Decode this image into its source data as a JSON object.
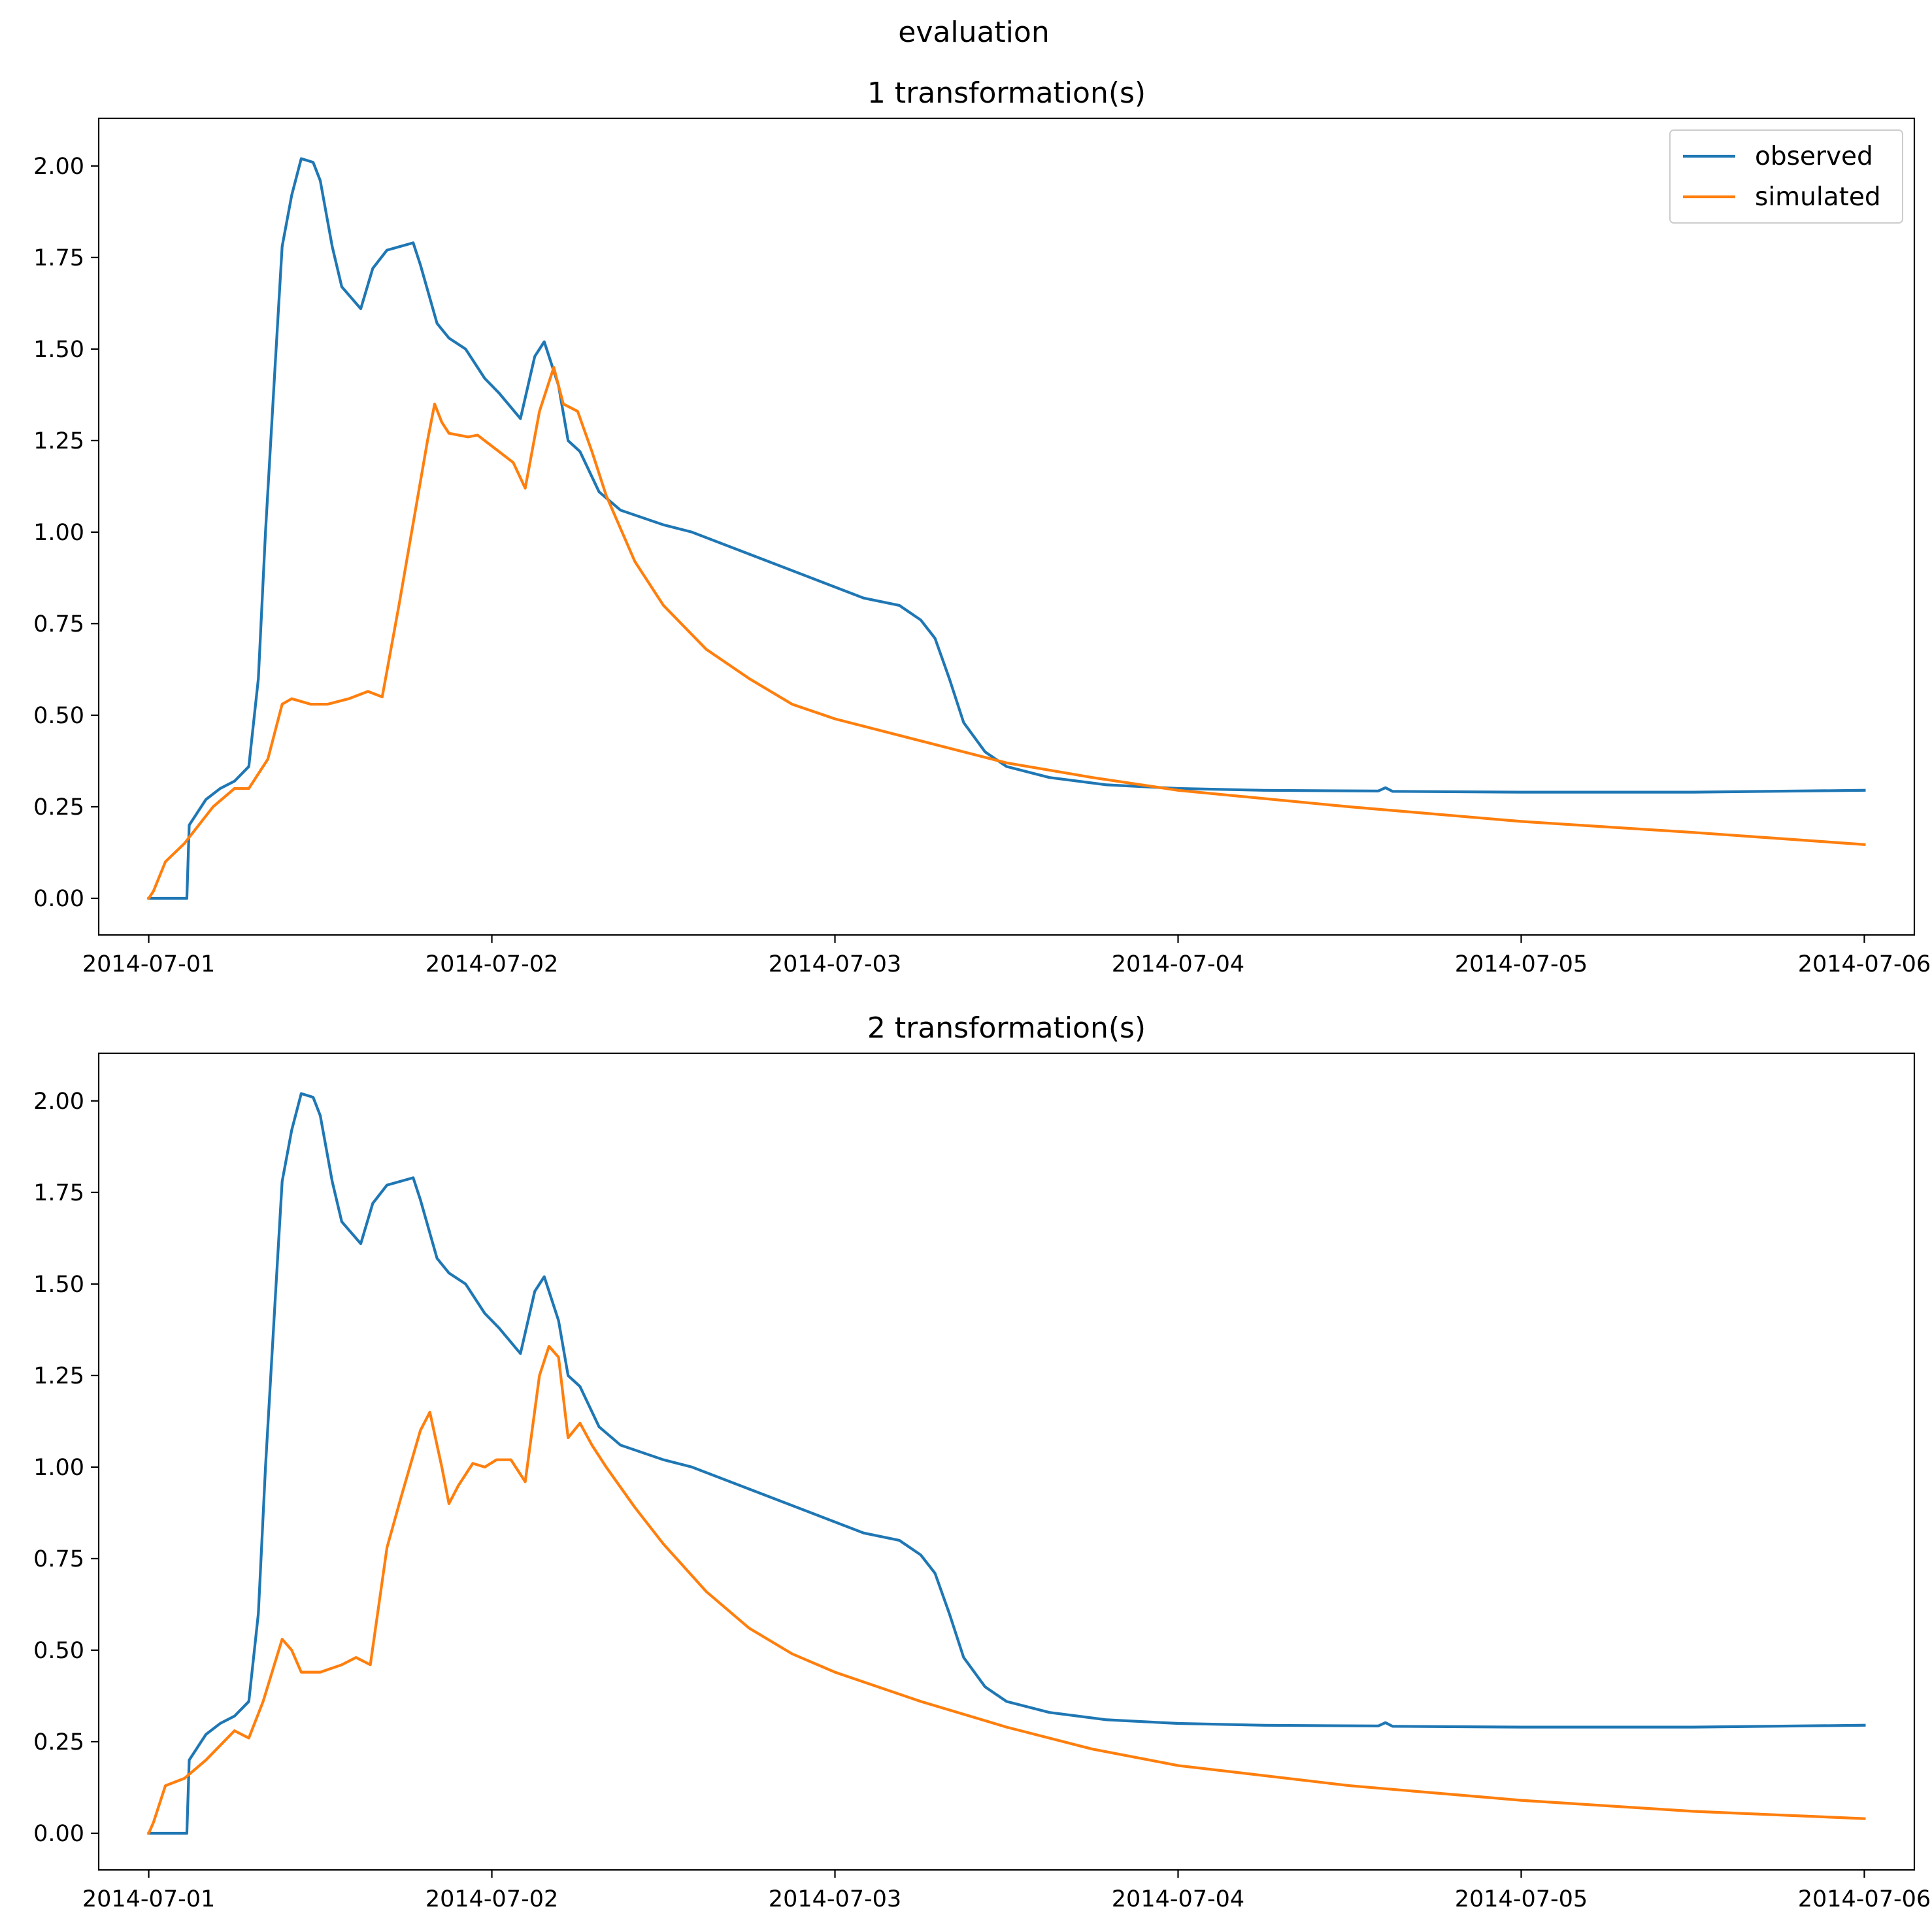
{
  "suptitle": "evaluation",
  "chart_data": [
    {
      "type": "line",
      "title": "1 transformation(s)",
      "xlabel": "",
      "ylabel": "",
      "xlim": [
        "2014-06-30T20:30",
        "2014-07-06T03:30"
      ],
      "ylim": [
        -0.1,
        2.13
      ],
      "xticks": [
        "2014-07-01",
        "2014-07-02",
        "2014-07-03",
        "2014-07-04",
        "2014-07-05",
        "2014-07-06"
      ],
      "yticks": [
        "0.00",
        "0.25",
        "0.50",
        "0.75",
        "1.00",
        "1.25",
        "1.50",
        "1.75",
        "2.00"
      ],
      "grid": false,
      "legend": "upper right",
      "series": [
        {
          "name": "observed",
          "color": "#1f77b4",
          "points": [
            [
              "2014-07-01T00:00",
              0.0
            ],
            [
              "2014-07-01T02:40",
              0.0
            ],
            [
              "2014-07-01T02:50",
              0.2
            ],
            [
              "2014-07-01T03:30",
              0.24
            ],
            [
              "2014-07-01T04:00",
              0.27
            ],
            [
              "2014-07-01T05:00",
              0.3
            ],
            [
              "2014-07-01T06:00",
              0.32
            ],
            [
              "2014-07-01T07:00",
              0.36
            ],
            [
              "2014-07-01T07:40",
              0.6
            ],
            [
              "2014-07-01T08:10",
              1.0
            ],
            [
              "2014-07-01T08:50",
              1.45
            ],
            [
              "2014-07-01T09:20",
              1.78
            ],
            [
              "2014-07-01T10:00",
              1.92
            ],
            [
              "2014-07-01T10:40",
              2.02
            ],
            [
              "2014-07-01T11:30",
              2.01
            ],
            [
              "2014-07-01T12:00",
              1.96
            ],
            [
              "2014-07-01T12:50",
              1.78
            ],
            [
              "2014-07-01T13:30",
              1.67
            ],
            [
              "2014-07-01T14:50",
              1.61
            ],
            [
              "2014-07-01T15:40",
              1.72
            ],
            [
              "2014-07-01T16:40",
              1.77
            ],
            [
              "2014-07-01T18:30",
              1.79
            ],
            [
              "2014-07-01T19:00",
              1.73
            ],
            [
              "2014-07-01T20:10",
              1.57
            ],
            [
              "2014-07-01T21:00",
              1.53
            ],
            [
              "2014-07-01T22:10",
              1.5
            ],
            [
              "2014-07-01T23:30",
              1.42
            ],
            [
              "2014-07-02T00:30",
              1.38
            ],
            [
              "2014-07-02T02:00",
              1.31
            ],
            [
              "2014-07-02T03:00",
              1.48
            ],
            [
              "2014-07-02T03:40",
              1.52
            ],
            [
              "2014-07-02T04:40",
              1.4
            ],
            [
              "2014-07-02T05:20",
              1.25
            ],
            [
              "2014-07-02T06:10",
              1.22
            ],
            [
              "2014-07-02T07:30",
              1.11
            ],
            [
              "2014-07-02T09:00",
              1.06
            ],
            [
              "2014-07-02T12:00",
              1.02
            ],
            [
              "2014-07-02T14:00",
              1.0
            ],
            [
              "2014-07-02T18:00",
              0.94
            ],
            [
              "2014-07-02T22:00",
              0.88
            ],
            [
              "2014-07-03T02:00",
              0.82
            ],
            [
              "2014-07-03T04:30",
              0.8
            ],
            [
              "2014-07-03T06:00",
              0.76
            ],
            [
              "2014-07-03T07:00",
              0.71
            ],
            [
              "2014-07-03T08:00",
              0.6
            ],
            [
              "2014-07-03T09:00",
              0.48
            ],
            [
              "2014-07-03T10:30",
              0.4
            ],
            [
              "2014-07-03T12:00",
              0.36
            ],
            [
              "2014-07-03T15:00",
              0.33
            ],
            [
              "2014-07-03T19:00",
              0.31
            ],
            [
              "2014-07-04T00:00",
              0.3
            ],
            [
              "2014-07-04T06:00",
              0.295
            ],
            [
              "2014-07-04T14:00",
              0.293
            ],
            [
              "2014-07-04T14:30",
              0.302
            ],
            [
              "2014-07-04T15:00",
              0.292
            ],
            [
              "2014-07-05T00:00",
              0.29
            ],
            [
              "2014-07-05T12:00",
              0.29
            ],
            [
              "2014-07-06T00:00",
              0.295
            ]
          ]
        },
        {
          "name": "simulated",
          "color": "#ff7f0e",
          "points": [
            [
              "2014-07-01T00:00",
              0.0
            ],
            [
              "2014-07-01T00:20",
              0.02
            ],
            [
              "2014-07-01T01:10",
              0.1
            ],
            [
              "2014-07-01T02:30",
              0.15
            ],
            [
              "2014-07-01T04:30",
              0.25
            ],
            [
              "2014-07-01T06:00",
              0.3
            ],
            [
              "2014-07-01T07:00",
              0.3
            ],
            [
              "2014-07-01T08:20",
              0.38
            ],
            [
              "2014-07-01T09:20",
              0.53
            ],
            [
              "2014-07-01T10:00",
              0.545
            ],
            [
              "2014-07-01T11:20",
              0.53
            ],
            [
              "2014-07-01T12:30",
              0.53
            ],
            [
              "2014-07-01T14:00",
              0.545
            ],
            [
              "2014-07-01T15:20",
              0.565
            ],
            [
              "2014-07-01T16:20",
              0.55
            ],
            [
              "2014-07-01T17:30",
              0.8
            ],
            [
              "2014-07-01T19:30",
              1.25
            ],
            [
              "2014-07-01T20:00",
              1.35
            ],
            [
              "2014-07-01T20:30",
              1.3
            ],
            [
              "2014-07-01T21:00",
              1.27
            ],
            [
              "2014-07-01T22:20",
              1.26
            ],
            [
              "2014-07-01T23:00",
              1.265
            ],
            [
              "2014-07-01T23:30",
              1.25
            ],
            [
              "2014-07-02T00:30",
              1.22
            ],
            [
              "2014-07-02T01:30",
              1.19
            ],
            [
              "2014-07-02T02:20",
              1.12
            ],
            [
              "2014-07-02T03:20",
              1.33
            ],
            [
              "2014-07-02T04:20",
              1.45
            ],
            [
              "2014-07-02T05:00",
              1.35
            ],
            [
              "2014-07-02T06:00",
              1.33
            ],
            [
              "2014-07-02T07:00",
              1.22
            ],
            [
              "2014-07-02T08:00",
              1.1
            ],
            [
              "2014-07-02T10:00",
              0.92
            ],
            [
              "2014-07-02T12:00",
              0.8
            ],
            [
              "2014-07-02T15:00",
              0.68
            ],
            [
              "2014-07-02T18:00",
              0.6
            ],
            [
              "2014-07-02T21:00",
              0.53
            ],
            [
              "2014-07-03T00:00",
              0.49
            ],
            [
              "2014-07-03T06:00",
              0.43
            ],
            [
              "2014-07-03T12:00",
              0.37
            ],
            [
              "2014-07-03T18:00",
              0.33
            ],
            [
              "2014-07-04T00:00",
              0.295
            ],
            [
              "2014-07-04T12:00",
              0.25
            ],
            [
              "2014-07-05T00:00",
              0.21
            ],
            [
              "2014-07-05T12:00",
              0.18
            ],
            [
              "2014-07-06T00:00",
              0.147
            ]
          ]
        }
      ]
    },
    {
      "type": "line",
      "title": "2 transformation(s)",
      "xlabel": "",
      "ylabel": "",
      "xlim": [
        "2014-06-30T20:30",
        "2014-07-06T03:30"
      ],
      "ylim": [
        -0.1,
        2.13
      ],
      "xticks": [
        "2014-07-01",
        "2014-07-02",
        "2014-07-03",
        "2014-07-04",
        "2014-07-05",
        "2014-07-06"
      ],
      "yticks": [
        "0.00",
        "0.25",
        "0.50",
        "0.75",
        "1.00",
        "1.25",
        "1.50",
        "1.75",
        "2.00"
      ],
      "grid": false,
      "legend": "none",
      "series": [
        {
          "name": "observed",
          "color": "#1f77b4",
          "points": [
            [
              "2014-07-01T00:00",
              0.0
            ],
            [
              "2014-07-01T02:40",
              0.0
            ],
            [
              "2014-07-01T02:50",
              0.2
            ],
            [
              "2014-07-01T03:30",
              0.24
            ],
            [
              "2014-07-01T04:00",
              0.27
            ],
            [
              "2014-07-01T05:00",
              0.3
            ],
            [
              "2014-07-01T06:00",
              0.32
            ],
            [
              "2014-07-01T07:00",
              0.36
            ],
            [
              "2014-07-01T07:40",
              0.6
            ],
            [
              "2014-07-01T08:10",
              1.0
            ],
            [
              "2014-07-01T08:50",
              1.45
            ],
            [
              "2014-07-01T09:20",
              1.78
            ],
            [
              "2014-07-01T10:00",
              1.92
            ],
            [
              "2014-07-01T10:40",
              2.02
            ],
            [
              "2014-07-01T11:30",
              2.01
            ],
            [
              "2014-07-01T12:00",
              1.96
            ],
            [
              "2014-07-01T12:50",
              1.78
            ],
            [
              "2014-07-01T13:30",
              1.67
            ],
            [
              "2014-07-01T14:50",
              1.61
            ],
            [
              "2014-07-01T15:40",
              1.72
            ],
            [
              "2014-07-01T16:40",
              1.77
            ],
            [
              "2014-07-01T18:30",
              1.79
            ],
            [
              "2014-07-01T19:00",
              1.73
            ],
            [
              "2014-07-01T20:10",
              1.57
            ],
            [
              "2014-07-01T21:00",
              1.53
            ],
            [
              "2014-07-01T22:10",
              1.5
            ],
            [
              "2014-07-01T23:30",
              1.42
            ],
            [
              "2014-07-02T00:30",
              1.38
            ],
            [
              "2014-07-02T02:00",
              1.31
            ],
            [
              "2014-07-02T03:00",
              1.48
            ],
            [
              "2014-07-02T03:40",
              1.52
            ],
            [
              "2014-07-02T04:40",
              1.4
            ],
            [
              "2014-07-02T05:20",
              1.25
            ],
            [
              "2014-07-02T06:10",
              1.22
            ],
            [
              "2014-07-02T07:30",
              1.11
            ],
            [
              "2014-07-02T09:00",
              1.06
            ],
            [
              "2014-07-02T12:00",
              1.02
            ],
            [
              "2014-07-02T14:00",
              1.0
            ],
            [
              "2014-07-02T18:00",
              0.94
            ],
            [
              "2014-07-02T22:00",
              0.88
            ],
            [
              "2014-07-03T02:00",
              0.82
            ],
            [
              "2014-07-03T04:30",
              0.8
            ],
            [
              "2014-07-03T06:00",
              0.76
            ],
            [
              "2014-07-03T07:00",
              0.71
            ],
            [
              "2014-07-03T08:00",
              0.6
            ],
            [
              "2014-07-03T09:00",
              0.48
            ],
            [
              "2014-07-03T10:30",
              0.4
            ],
            [
              "2014-07-03T12:00",
              0.36
            ],
            [
              "2014-07-03T15:00",
              0.33
            ],
            [
              "2014-07-03T19:00",
              0.31
            ],
            [
              "2014-07-04T00:00",
              0.3
            ],
            [
              "2014-07-04T06:00",
              0.295
            ],
            [
              "2014-07-04T14:00",
              0.293
            ],
            [
              "2014-07-04T14:30",
              0.302
            ],
            [
              "2014-07-04T15:00",
              0.292
            ],
            [
              "2014-07-05T00:00",
              0.29
            ],
            [
              "2014-07-05T12:00",
              0.29
            ],
            [
              "2014-07-06T00:00",
              0.295
            ]
          ]
        },
        {
          "name": "simulated",
          "color": "#ff7f0e",
          "points": [
            [
              "2014-07-01T00:00",
              0.0
            ],
            [
              "2014-07-01T00:20",
              0.03
            ],
            [
              "2014-07-01T01:10",
              0.13
            ],
            [
              "2014-07-01T02:30",
              0.15
            ],
            [
              "2014-07-01T04:00",
              0.2
            ],
            [
              "2014-07-01T06:00",
              0.28
            ],
            [
              "2014-07-01T07:00",
              0.26
            ],
            [
              "2014-07-01T08:00",
              0.36
            ],
            [
              "2014-07-01T09:20",
              0.53
            ],
            [
              "2014-07-01T10:00",
              0.5
            ],
            [
              "2014-07-01T10:40",
              0.44
            ],
            [
              "2014-07-01T12:00",
              0.44
            ],
            [
              "2014-07-01T13:30",
              0.46
            ],
            [
              "2014-07-01T14:30",
              0.48
            ],
            [
              "2014-07-01T15:30",
              0.46
            ],
            [
              "2014-07-01T16:40",
              0.78
            ],
            [
              "2014-07-01T17:40",
              0.92
            ],
            [
              "2014-07-01T19:00",
              1.1
            ],
            [
              "2014-07-01T19:40",
              1.15
            ],
            [
              "2014-07-01T20:30",
              1.0
            ],
            [
              "2014-07-01T21:00",
              0.9
            ],
            [
              "2014-07-01T21:40",
              0.95
            ],
            [
              "2014-07-01T22:40",
              1.01
            ],
            [
              "2014-07-01T23:30",
              1.0
            ],
            [
              "2014-07-02T00:20",
              1.02
            ],
            [
              "2014-07-02T01:20",
              1.02
            ],
            [
              "2014-07-02T02:20",
              0.96
            ],
            [
              "2014-07-02T03:20",
              1.25
            ],
            [
              "2014-07-02T04:00",
              1.33
            ],
            [
              "2014-07-02T04:40",
              1.3
            ],
            [
              "2014-07-02T05:20",
              1.08
            ],
            [
              "2014-07-02T06:10",
              1.12
            ],
            [
              "2014-07-02T07:00",
              1.06
            ],
            [
              "2014-07-02T08:00",
              1.0
            ],
            [
              "2014-07-02T10:00",
              0.89
            ],
            [
              "2014-07-02T12:00",
              0.79
            ],
            [
              "2014-07-02T15:00",
              0.66
            ],
            [
              "2014-07-02T18:00",
              0.56
            ],
            [
              "2014-07-02T21:00",
              0.49
            ],
            [
              "2014-07-03T00:00",
              0.44
            ],
            [
              "2014-07-03T06:00",
              0.36
            ],
            [
              "2014-07-03T12:00",
              0.29
            ],
            [
              "2014-07-03T18:00",
              0.23
            ],
            [
              "2014-07-04T00:00",
              0.185
            ],
            [
              "2014-07-04T12:00",
              0.13
            ],
            [
              "2014-07-05T00:00",
              0.09
            ],
            [
              "2014-07-05T12:00",
              0.06
            ],
            [
              "2014-07-06T00:00",
              0.04
            ]
          ]
        }
      ]
    }
  ]
}
